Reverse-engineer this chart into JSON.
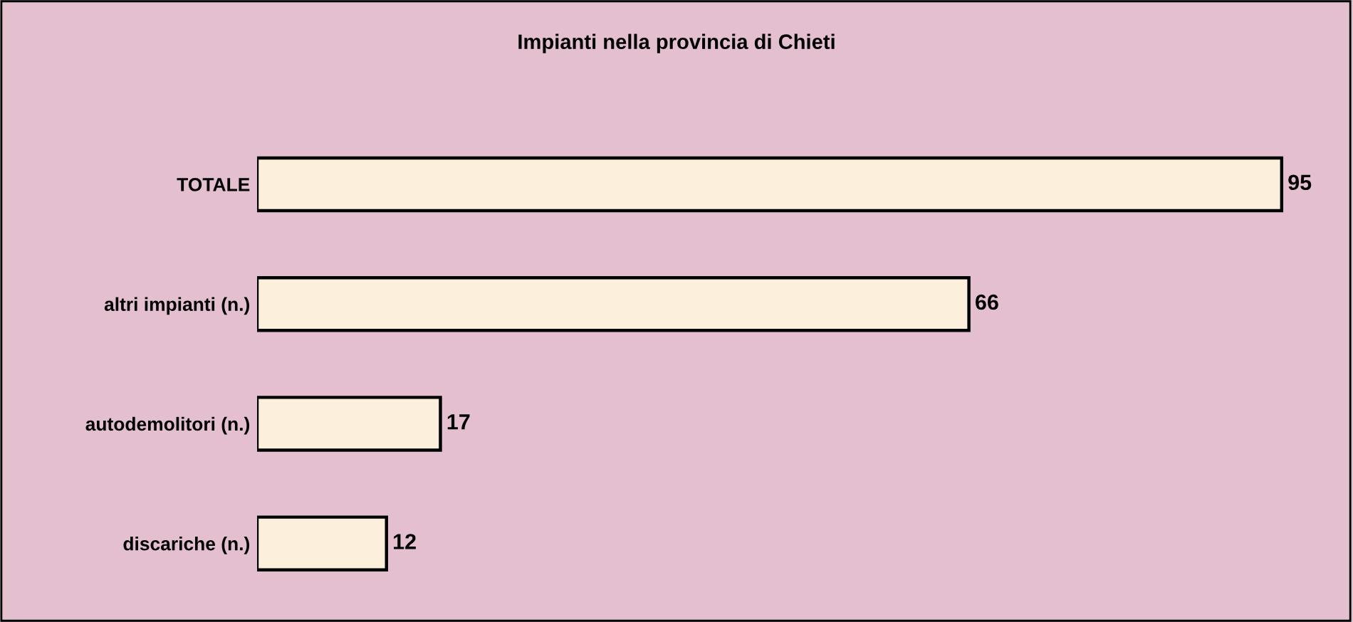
{
  "chart_data": {
    "type": "bar",
    "orientation": "horizontal",
    "title": "Impianti nella provincia di Chieti",
    "categories": [
      "TOTALE",
      "altri impianti (n.)",
      "autodemolitori (n.)",
      "discariche (n.)"
    ],
    "values": [
      95,
      66,
      17,
      12
    ],
    "color": "#fcefdb",
    "data_labels": true,
    "grid": false,
    "legend": false,
    "tick_labels": "y"
  }
}
